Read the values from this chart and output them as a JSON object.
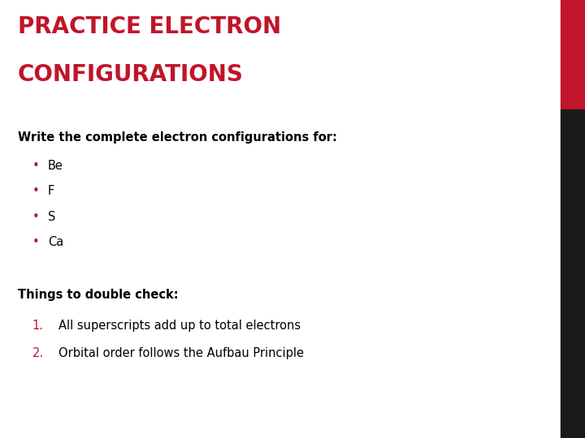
{
  "title_line1": "PRACTICE ELECTRON",
  "title_line2": "CONFIGURATIONS",
  "title_color": "#C0152A",
  "background_color": "#FFFFFF",
  "subtitle": "Write the complete electron configurations for:",
  "subtitle_color": "#000000",
  "bullet_items": [
    "Be",
    "F",
    "S",
    "Ca"
  ],
  "bullet_color": "#C0152A",
  "bullet_text_color": "#000000",
  "section2_title": "Things to double check:",
  "section2_color": "#000000",
  "numbered_items": [
    "All superscripts add up to total electrons",
    "Orbital order follows the Aufbau Principle"
  ],
  "numbered_color": "#C0152A",
  "numbered_text_color": "#000000",
  "right_bar_top_color": "#C0152A",
  "right_bar_bottom_color": "#1A1A1A",
  "title_fontsize": 20,
  "body_fontsize": 10.5,
  "fig_width": 7.2,
  "fig_height": 5.4,
  "dpi": 100
}
